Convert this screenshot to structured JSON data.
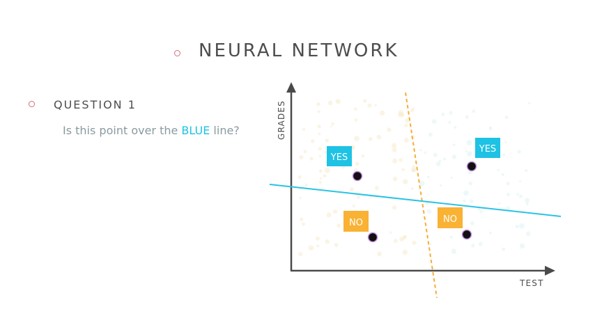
{
  "header": {
    "title": "NEURAL NETWORK"
  },
  "question": {
    "label": "QUESTION 1",
    "text_before": "Is this point over the ",
    "highlight": "BLUE",
    "text_after": " line?"
  },
  "chart_data": {
    "type": "diagram",
    "ylabel": "GRADES",
    "xlabel": "TEST",
    "labels": [
      {
        "text": "YES",
        "color": "#1ec2e4"
      },
      {
        "text": "YES",
        "color": "#1ec2e4"
      },
      {
        "text": "NO",
        "color": "#f9b234"
      },
      {
        "text": "NO",
        "color": "#f9b234"
      }
    ],
    "colors": {
      "blue_line": "#29c3e3",
      "orange_line": "#f6ad37",
      "axis": "#4a4a4a",
      "point_fill": "#111111",
      "point_stroke": "#c890e0"
    }
  }
}
